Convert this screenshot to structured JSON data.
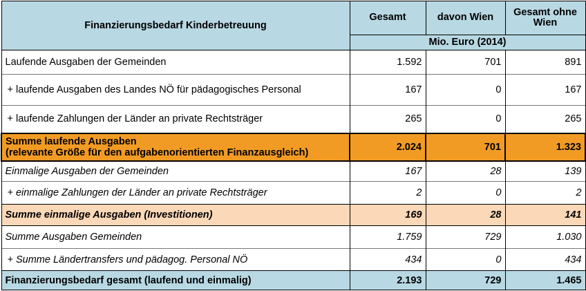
{
  "header": {
    "title": "Finanzierungsbedarf Kinderbetreuung",
    "col_gesamt": "Gesamt",
    "col_wien": "davon Wien",
    "col_ohne_wien": "Gesamt ohne Wien",
    "unit": "Mio. Euro (2014)"
  },
  "rows": [
    {
      "label": "Laufende Ausgaben der Gemeinden",
      "gesamt": "1.592",
      "wien": "701",
      "ohne_wien": "891"
    },
    {
      "label": "+ laufende Ausgaben des Landes NÖ für pädagogisches Personal",
      "gesamt": "167",
      "wien": "0",
      "ohne_wien": "167"
    },
    {
      "label": "+ laufende Zahlungen der Länder an private Rechtsträger",
      "gesamt": "265",
      "wien": "0",
      "ohne_wien": "265"
    },
    {
      "label_line1": "Summe laufende Ausgaben",
      "label_line2": "(relevante Größe für den aufgabenorientierten Finanzausgleich)",
      "gesamt": "2.024",
      "wien": "701",
      "ohne_wien": "1.323"
    },
    {
      "label": "Einmalige Ausgaben der Gemeinden",
      "gesamt": "167",
      "wien": "28",
      "ohne_wien": "139"
    },
    {
      "label": "+ einmalige Zahlungen der Länder an private Rechtsträger",
      "gesamt": "2",
      "wien": "0",
      "ohne_wien": "2"
    },
    {
      "label": "Summe einmalige Ausgaben (Investitionen)",
      "gesamt": "169",
      "wien": "28",
      "ohne_wien": "141"
    },
    {
      "label": "Summe Ausgaben Gemeinden",
      "gesamt": "1.759",
      "wien": "729",
      "ohne_wien": "1.030"
    },
    {
      "label": "+ Summe Ländertransfers und pädagog. Personal NÖ",
      "gesamt": "434",
      "wien": "0",
      "ohne_wien": "434"
    },
    {
      "label": "Finanzierungsbedarf gesamt (laufend und einmalig)",
      "gesamt": "2.193",
      "wien": "729",
      "ohne_wien": "1.465"
    }
  ],
  "colors": {
    "header_blue": "#b8d8e3",
    "highlight_orange": "#f29b24",
    "highlight_peach": "#fbd9b8"
  }
}
